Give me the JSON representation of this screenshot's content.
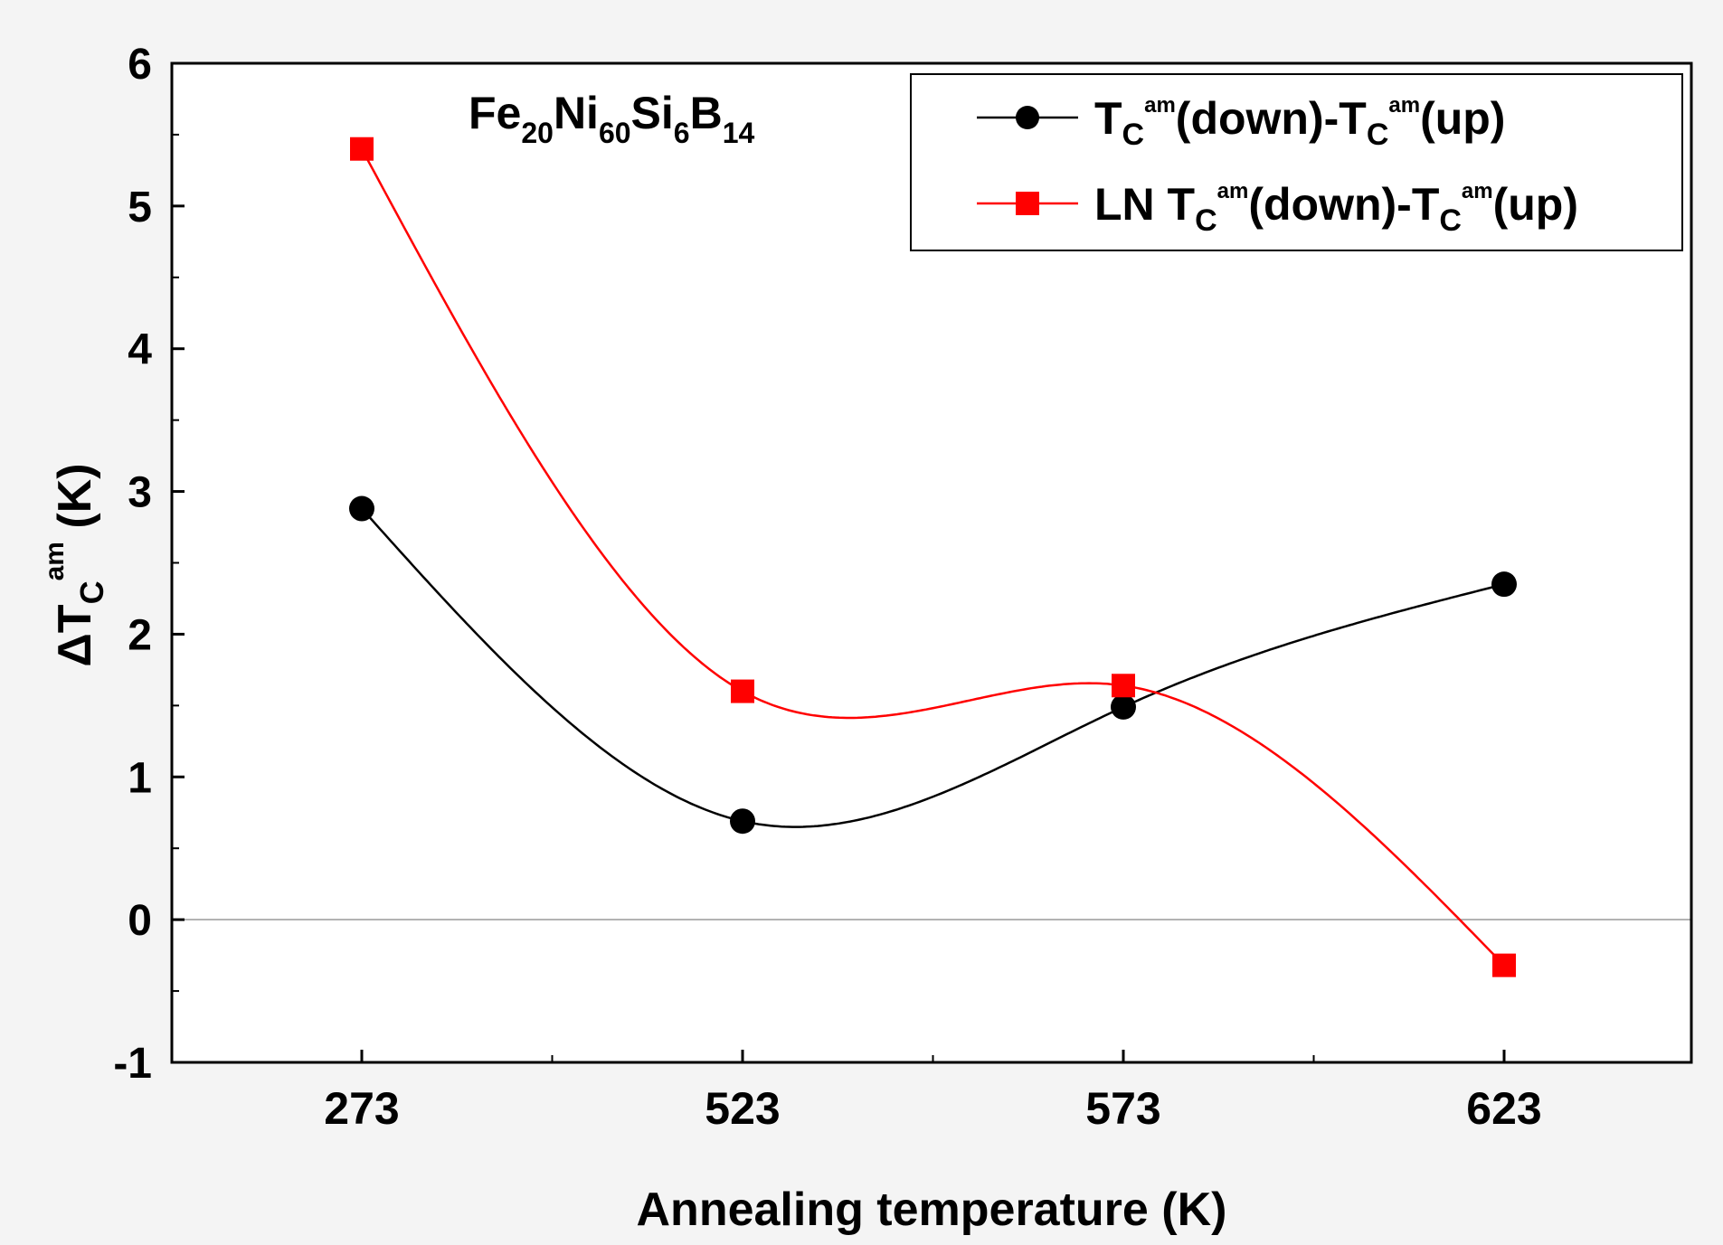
{
  "chart_data": {
    "type": "line",
    "annotation": {
      "base": [
        "Fe",
        "Ni",
        "Si",
        "B"
      ],
      "subs": [
        "20",
        "60",
        "6",
        "14"
      ]
    },
    "categories": [
      "273",
      "523",
      "573",
      "623"
    ],
    "ylim": [
      -1,
      6
    ],
    "yticks": [
      "-1",
      "0",
      "1",
      "2",
      "3",
      "4",
      "5",
      "6"
    ],
    "ytick_values": [
      -1,
      0,
      1,
      2,
      3,
      4,
      5,
      6
    ],
    "xlabel": "Annealing temperature (K)",
    "ylabel": {
      "prefix": "ΔT",
      "sub": "C",
      "sup": "am",
      "suffix": " (K)"
    },
    "reference_line": 0,
    "series": [
      {
        "name": "Tc^am(down)-Tc^am(up)",
        "legend": {
          "prefix": "",
          "T": "T",
          "sub": "C",
          "sup": "am",
          "mid": "(down)-",
          "sup2": "am",
          "end": "(up)"
        },
        "marker": "circle",
        "color": "#000000",
        "values": [
          2.88,
          0.69,
          1.49,
          2.35
        ]
      },
      {
        "name": "LN Tc^am(down)-Tc^am(up)",
        "legend": {
          "prefix": "LN ",
          "T": "T",
          "sub": "C",
          "sup": "am",
          "mid": "(down)-",
          "sup2": "am",
          "end": "(up)"
        },
        "marker": "square",
        "color": "#ff0000",
        "values": [
          5.4,
          1.6,
          1.64,
          -0.32
        ]
      }
    ]
  }
}
